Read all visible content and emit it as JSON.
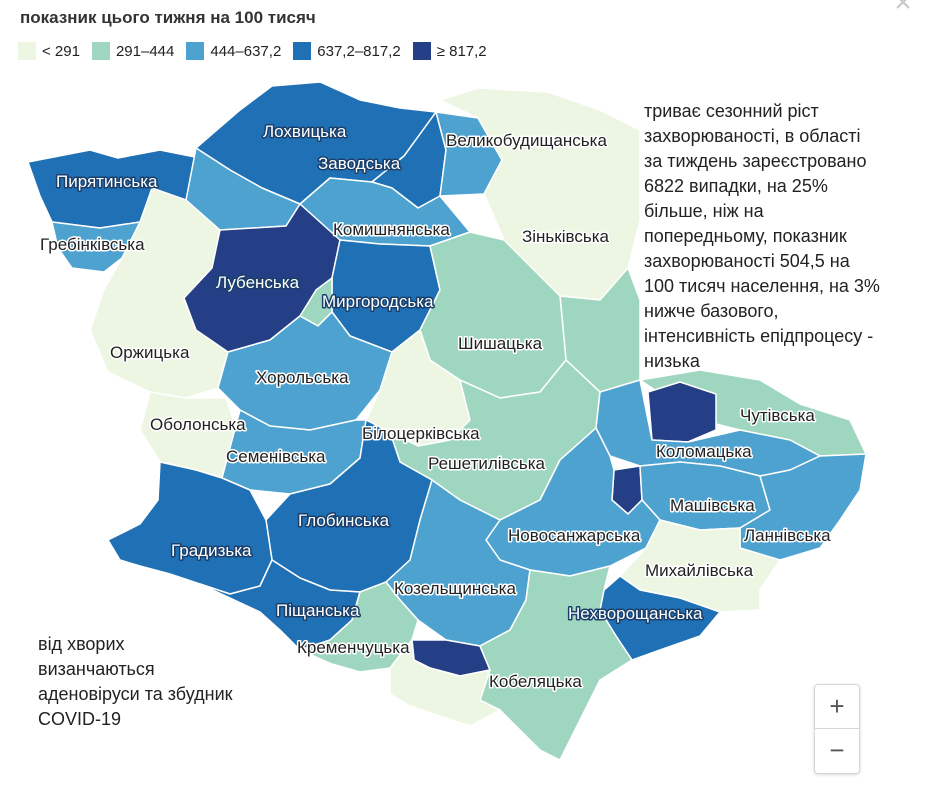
{
  "title": "показник цього тижня на 100 тисяч",
  "close_glyph": "×",
  "legend": [
    {
      "label": "< 291",
      "color": "#edf6e3"
    },
    {
      "label": "291–444",
      "color": "#9fd6bf"
    },
    {
      "label": "444–637,2",
      "color": "#4da2cf"
    },
    {
      "label": "637,2–817,2",
      "color": "#1f70b4"
    },
    {
      "label": "≥ 817,2",
      "color": "#253f86"
    }
  ],
  "regions": {
    "lokhvytska": {
      "name": "Лохвицька",
      "class": 3
    },
    "zavodska": {
      "name": "Заводська",
      "class": 3
    },
    "velykobudyshchanska": {
      "name": "Великобудищанська",
      "class": 2
    },
    "pyriatynska": {
      "name": "Пирятинська",
      "class": 3
    },
    "hrebinkivska": {
      "name": "Гребінківська",
      "class": 2
    },
    "komyshnianska": {
      "name": "Комишнянська",
      "class": 2
    },
    "zinkivska": {
      "name": "Зіньківська",
      "class": 0
    },
    "lubenska": {
      "name": "Лубенська",
      "class": 4
    },
    "myrhorodska": {
      "name": "Миргородська",
      "class": 3
    },
    "orzhytska": {
      "name": "Оржицька",
      "class": 0
    },
    "shyshatska": {
      "name": "Шишацька",
      "class": 1
    },
    "khorolska": {
      "name": "Хорольська",
      "class": 2
    },
    "orbitnyi_lubny_ring": {
      "name": "",
      "class": 1
    },
    "obolonska": {
      "name": "Оболонська",
      "class": 0
    },
    "bilotserkivska": {
      "name": "Білоцерківська",
      "class": 0
    },
    "semenivska": {
      "name": "Семенівська",
      "class": 2
    },
    "reshetylivska": {
      "name": "Решетилівська",
      "class": 1
    },
    "chutivska": {
      "name": "Чутівська",
      "class": 1
    },
    "kolomatska": {
      "name": "Коломацька",
      "class": 2
    },
    "hlobynska": {
      "name": "Глобинська",
      "class": 3
    },
    "hradyzka": {
      "name": "Градизька",
      "class": 3
    },
    "novosanzharska": {
      "name": "Новосанжарська",
      "class": 2
    },
    "mashivska": {
      "name": "Машівська",
      "class": 2
    },
    "lannivska": {
      "name": "Ланнівська",
      "class": 2
    },
    "kozelshchynska": {
      "name": "Козельщинська",
      "class": 2
    },
    "mykhailivska": {
      "name": "Михайлівська",
      "class": 0
    },
    "pishchanska": {
      "name": "Піщанська",
      "class": 3
    },
    "nekhvoroshchanska": {
      "name": "Нехворощанська",
      "class": 3
    },
    "kremenchutska": {
      "name": "Кременчуцька",
      "class": 1
    },
    "kobeliatska": {
      "name": "Кобеляцька",
      "class": 1
    },
    "poltava_city": {
      "name": "",
      "class": 4
    },
    "karlivka": {
      "name": "",
      "class": 4
    },
    "kremenchuk_city": {
      "name": "",
      "class": 4
    },
    "pyriatyn_extra": {
      "name": "",
      "class": 1
    }
  },
  "note_right": "триває сезонний ріст\nзахворюваності, в області\nза тиждень зареєстровано\n6822 випадки, на 25%\nбільше, ніж на\nпопередньому, показник\nзахворюваності 504,5 на\n100 тисяч населення, на 3%\nнижче базового,\nінтенсивність епідпроцесу -\nнизька",
  "note_left": "від хворих\nвизанчаються\nаденовіруси та збудник\nCOVID-19",
  "zoom": {
    "in_label": "+",
    "out_label": "−"
  }
}
